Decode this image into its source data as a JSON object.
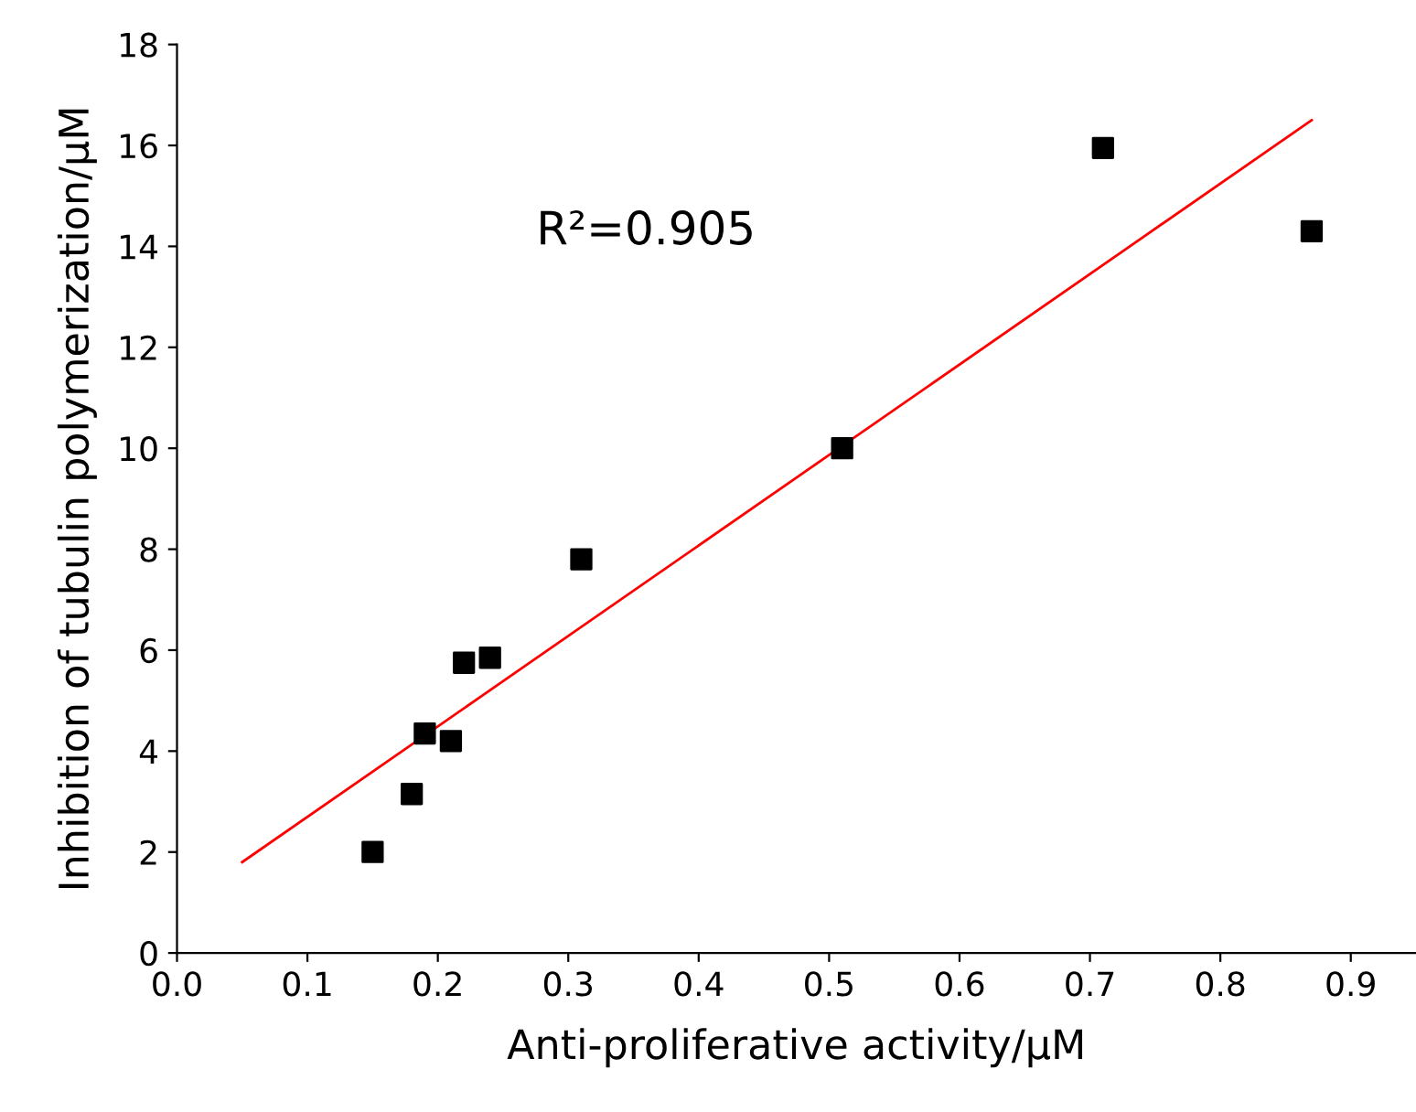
{
  "chart_data": {
    "type": "scatter",
    "xlabel": "Anti-proliferative activity/μM",
    "ylabel": "Inhibition of tubulin polymerization/μM",
    "x": [
      0.15,
      0.18,
      0.19,
      0.21,
      0.22,
      0.24,
      0.31,
      0.51,
      0.71,
      0.87
    ],
    "series": [
      {
        "color": "#000000",
        "marker": "square",
        "values": [
          2.0,
          3.15,
          4.35,
          4.2,
          5.75,
          5.85,
          7.8,
          10.0,
          15.95,
          14.3
        ]
      },
      {
        "type": "line",
        "color": "#ff0000",
        "marker": "none",
        "x": [
          0.05,
          0.87
        ],
        "values": [
          1.8,
          16.5
        ]
      }
    ],
    "annotations": [
      "R²=0.905"
    ],
    "xlim": [
      0,
      0.95
    ],
    "xticks": [
      {
        "value": 0,
        "label": "0.0"
      },
      0.1,
      0.2,
      0.3,
      0.4,
      0.5,
      0.6,
      0.7,
      0.8,
      0.9
    ],
    "ylim": [
      0,
      18
    ],
    "yticks": [
      0,
      2,
      4,
      6,
      8,
      10,
      12,
      14,
      16,
      18
    ],
    "grid": false,
    "legend": false
  }
}
